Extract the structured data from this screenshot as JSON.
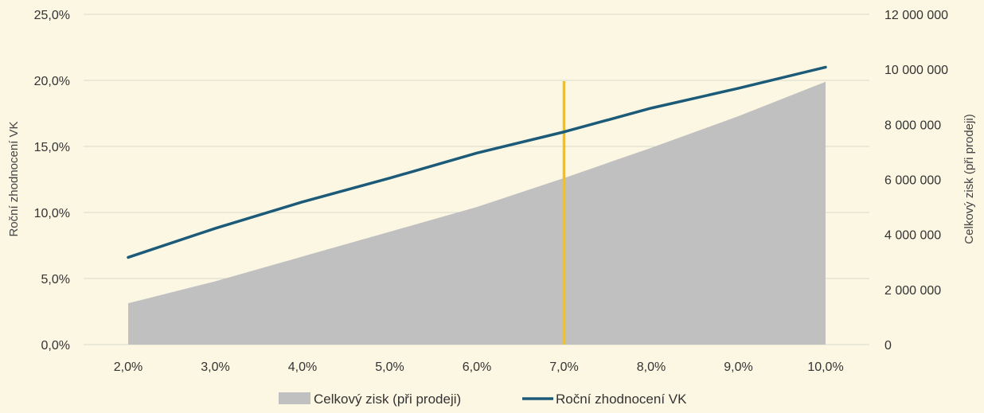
{
  "chart_data": {
    "type": "line",
    "x_labels": [
      "2,0%",
      "3,0%",
      "4,0%",
      "5,0%",
      "6,0%",
      "7,0%",
      "8,0%",
      "9,0%",
      "10,0%"
    ],
    "series": [
      {
        "name": "Celkový zisk (při prodeji)",
        "kind": "area",
        "axis": "right",
        "color": "#c0c0c0",
        "values": [
          1500000,
          2300000,
          3200000,
          4100000,
          5000000,
          6050000,
          7150000,
          8300000,
          9550000
        ]
      },
      {
        "name": "Roční zhodnocení VK",
        "kind": "line",
        "axis": "left",
        "color": "#1b5a78",
        "values": [
          6.6,
          8.8,
          10.8,
          12.6,
          14.5,
          16.1,
          17.9,
          19.4,
          21.0
        ]
      }
    ],
    "marker": {
      "x_label": "7,0%",
      "color": "#f5c01a"
    },
    "y_left": {
      "label": "Roční zhodnocení VK",
      "min": 0,
      "max": 25,
      "ticks": [
        "0,0%",
        "5,0%",
        "10,0%",
        "15,0%",
        "20,0%",
        "25,0%"
      ]
    },
    "y_right": {
      "label": "Celkový zisk (při prodeji)",
      "min": 0,
      "max": 12000000,
      "ticks": [
        "0",
        "2 000 000",
        "4 000 000",
        "6 000 000",
        "8 000 000",
        "10 000 000",
        "12 000 000"
      ]
    },
    "grid": true,
    "legend": "bottom-center",
    "background": "#fcf7e3",
    "grid_color": "#d9d9c8"
  }
}
